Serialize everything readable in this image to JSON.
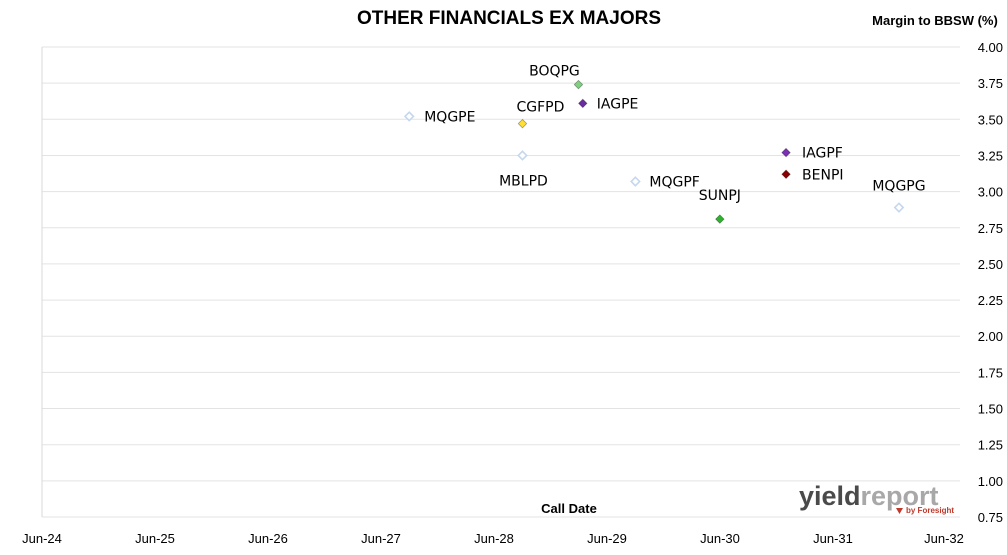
{
  "chart_data": {
    "type": "scatter",
    "title": "OTHER FINANCIALS EX MAJORS",
    "xlabel": "Call Date",
    "ylabel": "Margin to BBSW (%)",
    "x_axis": {
      "type": "date",
      "min": "2024-06-01",
      "max": "2032-06-01",
      "tick_labels": [
        "Jun-24",
        "Jun-25",
        "Jun-26",
        "Jun-27",
        "Jun-28",
        "Jun-29",
        "Jun-30",
        "Jun-31",
        "Jun-32"
      ]
    },
    "y_axis": {
      "min": 0.75,
      "max": 4.0,
      "step": 0.25,
      "position": "right",
      "tick_labels": [
        "4.00",
        "3.75",
        "3.50",
        "3.25",
        "3.00",
        "2.75",
        "2.50",
        "2.25",
        "2.00",
        "1.75",
        "1.50",
        "1.25",
        "1.00",
        "0.75"
      ]
    },
    "grid": "horizontal",
    "legend": "none",
    "points": [
      {
        "label": "MQGPE",
        "x": "2027-09-01",
        "y": 3.52,
        "color": "#c5d7ee",
        "filled": false
      },
      {
        "label": "BOQPG",
        "x": "2029-03-01",
        "y": 3.74,
        "color": "#7fd17f",
        "filled": true
      },
      {
        "label": "CGFPD",
        "x": "2028-09-01",
        "y": 3.47,
        "color": "#ffe033",
        "filled": true
      },
      {
        "label": "IAGPE",
        "x": "2029-03-15",
        "y": 3.61,
        "color": "#6a2c9e",
        "filled": true
      },
      {
        "label": "MBLPD",
        "x": "2028-09-01",
        "y": 3.25,
        "color": "#c5d7ee",
        "filled": false
      },
      {
        "label": "MQGPF",
        "x": "2029-09-01",
        "y": 3.07,
        "color": "#c5d7ee",
        "filled": false
      },
      {
        "label": "SUNPJ",
        "x": "2030-06-01",
        "y": 2.81,
        "color": "#2cb52c",
        "filled": true
      },
      {
        "label": "IAGPF",
        "x": "2031-01-01",
        "y": 3.27,
        "color": "#7b2fb5",
        "filled": true
      },
      {
        "label": "BENPI",
        "x": "2031-01-01",
        "y": 3.12,
        "color": "#8b0000",
        "filled": true
      },
      {
        "label": "MQGPG",
        "x": "2032-01-01",
        "y": 2.89,
        "color": "#c5d7ee",
        "filled": false
      }
    ]
  },
  "logo": {
    "text_dark": "yield",
    "text_light": "report",
    "sub": "by Foresight",
    "color_dark": "#4a4a4a",
    "color_light": "#a8a8a8",
    "color_sub": "#c0392b"
  }
}
